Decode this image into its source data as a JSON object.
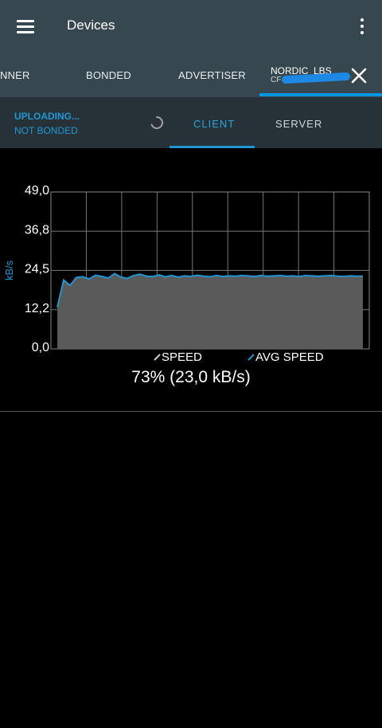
{
  "app": {
    "title": "Devices"
  },
  "tabs": [
    {
      "label": "NNER"
    },
    {
      "label": "BONDED"
    },
    {
      "label": "ADVERTISER"
    }
  ],
  "device_tab": {
    "name": "NORDIC_LBS",
    "address": "CF"
  },
  "status": {
    "primary": "UPLOADING...",
    "secondary": "NOT BONDED"
  },
  "subtabs": {
    "client": "CLIENT",
    "server": "SERVER"
  },
  "colors": {
    "accent": "#2196d3",
    "toolbar": "#37474f",
    "status_bar": "#263238",
    "speed_fill": "#5a5a5a",
    "avg_speed_line": "#2196d3"
  },
  "icons": {
    "menu": "hamburger-menu-icon",
    "overflow": "more-vert-icon",
    "close": "close-icon",
    "progress": "spinner-icon"
  },
  "chart_data": {
    "type": "area",
    "ylabel": "kB/s",
    "yticks": [
      "0,0",
      "12,2",
      "24,5",
      "36,8",
      "49,0"
    ],
    "ylim": [
      0,
      49
    ],
    "grid": true,
    "legend_position": "bottom-center",
    "x_range": [
      0,
      50
    ],
    "series": [
      {
        "name": "SPEED",
        "x": [
          1,
          2,
          3,
          4,
          5,
          6,
          7,
          8,
          9,
          10,
          11,
          12,
          13,
          14,
          15,
          16,
          17,
          18,
          19,
          20,
          21,
          22,
          23,
          24,
          25,
          26,
          27,
          28,
          29,
          30,
          31,
          32,
          33,
          34,
          35,
          36,
          37,
          38,
          39,
          40,
          41,
          42,
          43,
          44,
          45,
          46,
          47,
          48,
          49
        ],
        "values": [
          13.0,
          21.5,
          19.8,
          22.3,
          22.5,
          21.8,
          23.0,
          22.6,
          22.1,
          23.5,
          22.4,
          22.0,
          22.9,
          23.3,
          22.7,
          22.6,
          23.1,
          22.5,
          22.9,
          22.4,
          22.8,
          22.6,
          23.0,
          22.7,
          22.5,
          22.9,
          22.6,
          22.8,
          22.7,
          22.9,
          22.8,
          22.6,
          22.9,
          22.7,
          22.8,
          22.9,
          22.7,
          22.8,
          22.6,
          22.9,
          22.8,
          22.7,
          22.8,
          22.9,
          22.7,
          22.6,
          22.8,
          22.7,
          22.7
        ]
      },
      {
        "name": "AVG SPEED",
        "x": [
          1,
          2,
          3,
          4,
          5,
          6,
          7,
          8,
          9,
          10,
          11,
          12,
          13,
          14,
          15,
          16,
          17,
          18,
          19,
          20,
          21,
          22,
          23,
          24,
          25,
          26,
          27,
          28,
          29,
          30,
          31,
          32,
          33,
          34,
          35,
          36,
          37,
          38,
          39,
          40,
          41,
          42,
          43,
          44,
          45,
          46,
          47,
          48,
          49
        ],
        "values": [
          13.0,
          21.5,
          19.8,
          22.3,
          22.5,
          21.8,
          23.0,
          22.6,
          22.1,
          23.5,
          22.4,
          22.0,
          22.9,
          23.3,
          22.7,
          22.6,
          23.1,
          22.5,
          22.9,
          22.4,
          22.8,
          22.6,
          23.0,
          22.7,
          22.5,
          22.9,
          22.6,
          22.8,
          22.7,
          22.9,
          22.8,
          22.6,
          22.9,
          22.7,
          22.8,
          22.9,
          22.7,
          22.8,
          22.6,
          22.9,
          22.8,
          22.7,
          22.8,
          22.9,
          22.7,
          22.6,
          22.8,
          22.7,
          22.7
        ]
      }
    ],
    "caption": "73% (23,0 kB/s)",
    "progress_percent": 73
  }
}
